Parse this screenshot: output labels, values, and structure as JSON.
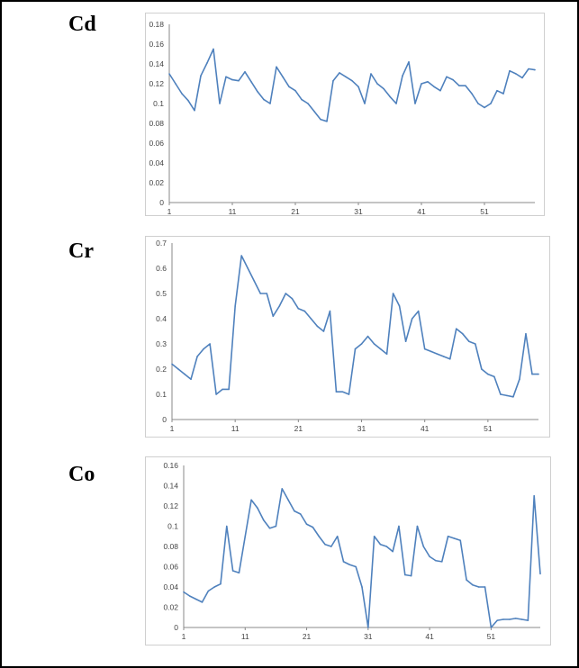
{
  "panels": [
    {
      "label": "Cd"
    },
    {
      "label": "Cr"
    },
    {
      "label": "Co"
    }
  ],
  "line_color": "#4f81bd",
  "chart_data": [
    {
      "type": "line",
      "title": "",
      "xlabel": "",
      "ylabel": "",
      "x_tick_labels": [
        "1",
        "11",
        "21",
        "31",
        "41",
        "51"
      ],
      "y_tick_labels": [
        "0",
        "0.02",
        "0.04",
        "0.06",
        "0.08",
        "0.1",
        "0.12",
        "0.14",
        "0.16",
        "0.18"
      ],
      "xlim": [
        1,
        59
      ],
      "ylim": [
        0,
        0.18
      ],
      "grid": false,
      "x": [
        1,
        2,
        3,
        4,
        5,
        6,
        7,
        8,
        9,
        10,
        11,
        12,
        13,
        14,
        15,
        16,
        17,
        18,
        19,
        20,
        21,
        22,
        23,
        24,
        25,
        26,
        27,
        28,
        29,
        30,
        31,
        32,
        33,
        34,
        35,
        36,
        37,
        38,
        39,
        40,
        41,
        42,
        43,
        44,
        45,
        46,
        47,
        48,
        49,
        50,
        51,
        52,
        53,
        54,
        55,
        56,
        57,
        58,
        59
      ],
      "series": [
        {
          "values": [
            0.13,
            0.12,
            0.11,
            0.103,
            0.093,
            0.128,
            0.141,
            0.155,
            0.1,
            0.127,
            0.124,
            0.123,
            0.132,
            0.122,
            0.112,
            0.104,
            0.1,
            0.137,
            0.127,
            0.117,
            0.113,
            0.104,
            0.1,
            0.092,
            0.084,
            0.082,
            0.123,
            0.131,
            0.127,
            0.123,
            0.117,
            0.1,
            0.13,
            0.12,
            0.115,
            0.107,
            0.1,
            0.128,
            0.142,
            0.1,
            0.12,
            0.122,
            0.117,
            0.113,
            0.127,
            0.124,
            0.118,
            0.118,
            0.11,
            0.1,
            0.096,
            0.1,
            0.113,
            0.11,
            0.133,
            0.13,
            0.126,
            0.135,
            0.134
          ]
        }
      ]
    },
    {
      "type": "line",
      "title": "",
      "xlabel": "",
      "ylabel": "",
      "x_tick_labels": [
        "1",
        "11",
        "21",
        "31",
        "41",
        "51"
      ],
      "y_tick_labels": [
        "0",
        "0.1",
        "0.2",
        "0.3",
        "0.4",
        "0.5",
        "0.6",
        "0.7"
      ],
      "xlim": [
        1,
        59
      ],
      "ylim": [
        0,
        0.7
      ],
      "grid": false,
      "x": [
        1,
        2,
        3,
        4,
        5,
        6,
        7,
        8,
        9,
        10,
        11,
        12,
        13,
        14,
        15,
        16,
        17,
        18,
        19,
        20,
        21,
        22,
        23,
        24,
        25,
        26,
        27,
        28,
        29,
        30,
        31,
        32,
        33,
        34,
        35,
        36,
        37,
        38,
        39,
        40,
        41,
        42,
        43,
        44,
        45,
        46,
        47,
        48,
        49,
        50,
        51,
        52,
        53,
        54,
        55,
        56,
        57,
        58,
        59
      ],
      "series": [
        {
          "values": [
            0.22,
            0.2,
            0.18,
            0.16,
            0.25,
            0.28,
            0.3,
            0.1,
            0.12,
            0.12,
            0.45,
            0.65,
            0.6,
            0.55,
            0.5,
            0.5,
            0.41,
            0.45,
            0.5,
            0.48,
            0.44,
            0.43,
            0.4,
            0.37,
            0.35,
            0.43,
            0.11,
            0.11,
            0.1,
            0.28,
            0.3,
            0.33,
            0.3,
            0.28,
            0.26,
            0.5,
            0.45,
            0.31,
            0.4,
            0.43,
            0.28,
            0.27,
            0.26,
            0.25,
            0.24,
            0.36,
            0.34,
            0.31,
            0.3,
            0.2,
            0.18,
            0.17,
            0.1,
            0.095,
            0.09,
            0.16,
            0.34,
            0.18,
            0.18
          ]
        }
      ]
    },
    {
      "type": "line",
      "title": "",
      "xlabel": "",
      "ylabel": "",
      "x_tick_labels": [
        "1",
        "11",
        "21",
        "31",
        "41",
        "51"
      ],
      "y_tick_labels": [
        "0",
        "0.02",
        "0.04",
        "0.06",
        "0.08",
        "0.1",
        "0.12",
        "0.14",
        "0.16"
      ],
      "xlim": [
        1,
        59
      ],
      "ylim": [
        0,
        0.16
      ],
      "grid": false,
      "x": [
        1,
        2,
        3,
        4,
        5,
        6,
        7,
        8,
        9,
        10,
        11,
        12,
        13,
        14,
        15,
        16,
        17,
        18,
        19,
        20,
        21,
        22,
        23,
        24,
        25,
        26,
        27,
        28,
        29,
        30,
        31,
        32,
        33,
        34,
        35,
        36,
        37,
        38,
        39,
        40,
        41,
        42,
        43,
        44,
        45,
        46,
        47,
        48,
        49,
        50,
        51,
        52,
        53,
        54,
        55,
        56,
        57,
        58,
        59
      ],
      "series": [
        {
          "values": [
            0.035,
            0.031,
            0.028,
            0.025,
            0.036,
            0.04,
            0.043,
            0.1,
            0.056,
            0.054,
            0.09,
            0.126,
            0.118,
            0.106,
            0.098,
            0.1,
            0.137,
            0.126,
            0.115,
            0.112,
            0.102,
            0.099,
            0.09,
            0.082,
            0.08,
            0.09,
            0.065,
            0.062,
            0.06,
            0.04,
            0.0,
            0.09,
            0.082,
            0.08,
            0.075,
            0.1,
            0.052,
            0.051,
            0.1,
            0.08,
            0.07,
            0.066,
            0.065,
            0.09,
            0.088,
            0.086,
            0.047,
            0.042,
            0.04,
            0.04,
            0.0,
            0.007,
            0.008,
            0.008,
            0.009,
            0.008,
            0.007,
            0.13,
            0.053
          ]
        }
      ]
    }
  ]
}
